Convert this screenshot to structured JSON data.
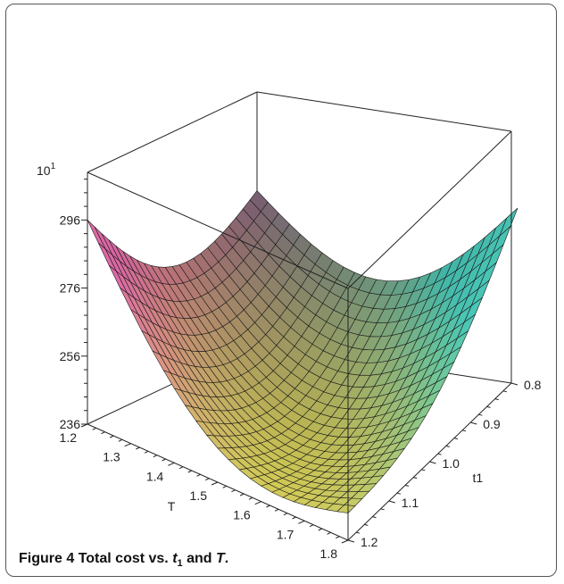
{
  "figure": {
    "caption_label": "Figure 4",
    "caption_text_prefix": "Total cost vs. ",
    "caption_var1": "t",
    "caption_var1_sub": "1",
    "caption_text_mid": " and ",
    "caption_var2": "T",
    "caption_text_end": "."
  },
  "chart_data": {
    "type": "surface",
    "title": "",
    "xlabel": "T",
    "ylabel": "t1",
    "zlabel": "",
    "z_multiplier_label": "10",
    "z_multiplier_exp": "1",
    "x_ticks": [
      "1.2",
      "1.3",
      "1.4",
      "1.5",
      "1.6",
      "1.7",
      "1.8"
    ],
    "y_ticks": [
      "0.8",
      "0.9",
      "1.0",
      "1.1",
      "1.2"
    ],
    "z_ticks": [
      "236",
      "256",
      "276",
      "296"
    ],
    "xlim": [
      1.2,
      1.8
    ],
    "ylim": [
      0.8,
      1.2
    ],
    "zlim": [
      236,
      310
    ],
    "z_tick_values": [
      236,
      256,
      276,
      296
    ],
    "x_tick_values": [
      1.2,
      1.3,
      1.4,
      1.5,
      1.6,
      1.7,
      1.8
    ],
    "y_tick_values": [
      0.8,
      0.9,
      1.0,
      1.1,
      1.2
    ],
    "surface_samples": [
      {
        "T": 1.2,
        "t1": 1.2,
        "z": 296
      },
      {
        "T": 1.2,
        "t1": 0.8,
        "z": 281
      },
      {
        "T": 1.8,
        "t1": 0.8,
        "z": 310
      },
      {
        "T": 1.8,
        "t1": 1.2,
        "z": 244
      },
      {
        "T": 1.5,
        "t1": 1.0,
        "z": 252
      },
      {
        "T": 1.65,
        "t1": 1.15,
        "z": 239
      }
    ],
    "colormap": [
      "#e06aa8",
      "#d8d050",
      "#4fd8c8"
    ],
    "grid": false,
    "legend": "none"
  }
}
